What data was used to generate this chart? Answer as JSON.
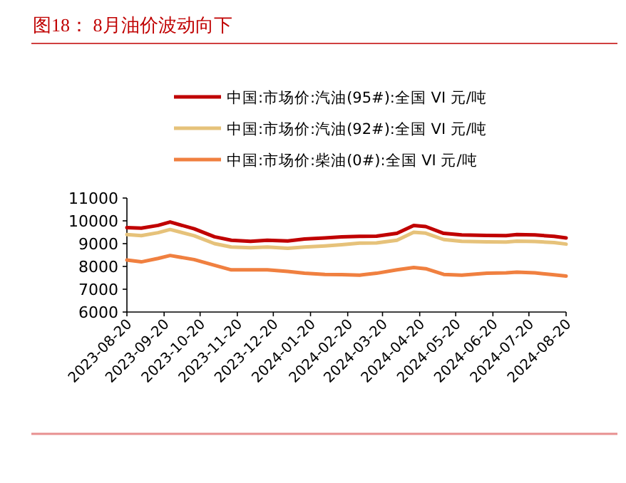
{
  "chart_data": {
    "type": "line",
    "title": "图18：  8月油价波动向下",
    "x": [
      "2023-08-20",
      "2023-09-01",
      "2023-09-15",
      "2023-09-25",
      "2023-10-15",
      "2023-11-01",
      "2023-11-15",
      "2023-12-01",
      "2023-12-15",
      "2024-01-01",
      "2024-01-15",
      "2024-02-01",
      "2024-02-15",
      "2024-03-01",
      "2024-03-15",
      "2024-04-01",
      "2024-04-15",
      "2024-04-25",
      "2024-05-10",
      "2024-05-25",
      "2024-06-15",
      "2024-07-01",
      "2024-07-10",
      "2024-07-25",
      "2024-08-10",
      "2024-08-20"
    ],
    "series": [
      {
        "name": "中国:市场价:汽油(95#):全国 VI 元/吨",
        "color": "#c00000",
        "values": [
          9700,
          9680,
          9800,
          9950,
          9650,
          9300,
          9150,
          9100,
          9150,
          9120,
          9200,
          9250,
          9300,
          9320,
          9330,
          9450,
          9800,
          9750,
          9450,
          9380,
          9360,
          9350,
          9400,
          9380,
          9320,
          9250
        ]
      },
      {
        "name": "中国:市场价:汽油(92#):全国 VI 元/吨",
        "color": "#e6c27a",
        "values": [
          9400,
          9350,
          9480,
          9620,
          9350,
          9000,
          8850,
          8820,
          8850,
          8800,
          8850,
          8900,
          8950,
          9020,
          9030,
          9150,
          9500,
          9460,
          9180,
          9100,
          9080,
          9070,
          9110,
          9090,
          9050,
          8980
        ]
      },
      {
        "name": "中国:市场价:柴油(0#):全国 VI 元/吨",
        "color": "#f08040",
        "values": [
          8280,
          8200,
          8350,
          8480,
          8300,
          8050,
          7850,
          7850,
          7850,
          7780,
          7700,
          7650,
          7640,
          7620,
          7700,
          7850,
          7950,
          7900,
          7650,
          7620,
          7700,
          7720,
          7750,
          7720,
          7630,
          7580
        ]
      }
    ],
    "xlim": [
      "2023-08-20",
      "2024-08-20"
    ],
    "xticks": [
      "2023-08-20",
      "2023-09-20",
      "2023-10-20",
      "2023-11-20",
      "2023-12-20",
      "2024-01-20",
      "2024-02-20",
      "2024-03-20",
      "2024-04-20",
      "2024-05-20",
      "2024-06-20",
      "2024-07-20",
      "2024-08-20"
    ],
    "ylim": [
      6000,
      11000
    ],
    "yticks": [
      6000,
      7000,
      8000,
      9000,
      10000,
      11000
    ],
    "grid": false,
    "legend": "top",
    "marker": "none",
    "line_style": "solid"
  }
}
